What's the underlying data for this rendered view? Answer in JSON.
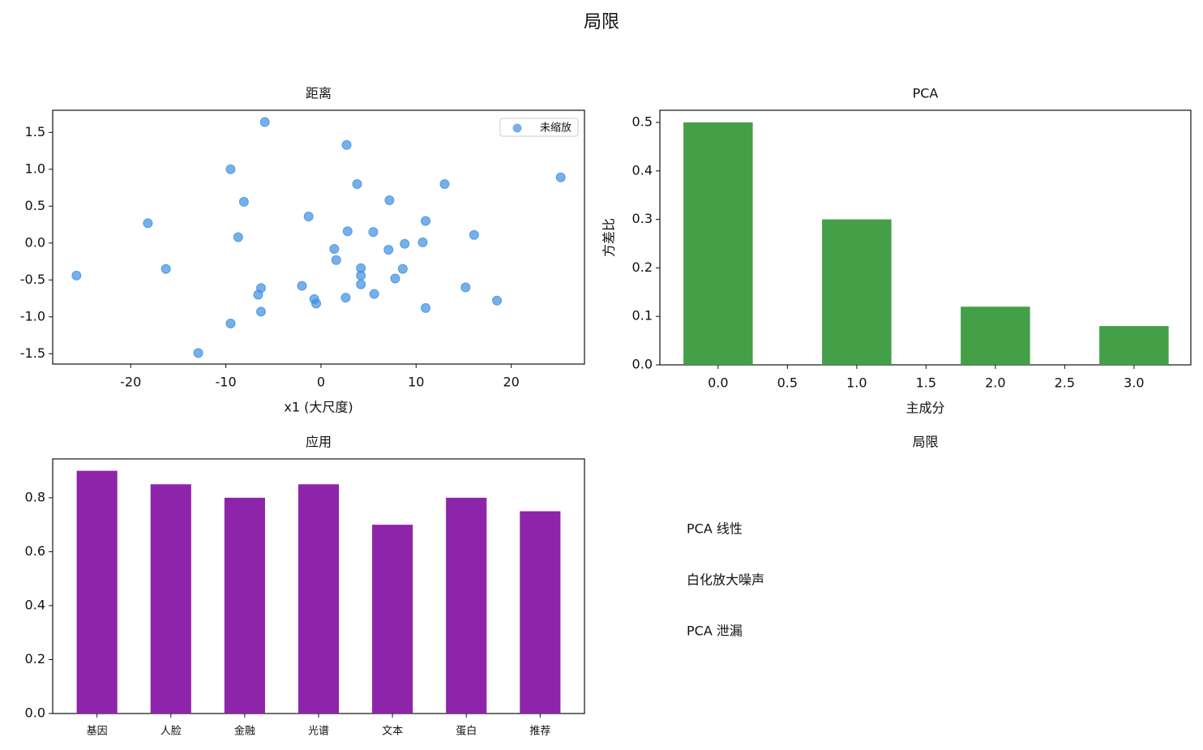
{
  "title": "局限",
  "chart_data": [
    {
      "type": "scatter",
      "title": "距离",
      "xlabel": "x1 (大尺度)",
      "series": [
        {
          "name": "未缩放",
          "color": "#3d8fe0",
          "x": [
            -5.9,
            2.7,
            -9.5,
            25.2,
            3.8,
            13.0,
            -8.1,
            7.2,
            -18.2,
            -1.3,
            11.0,
            2.8,
            5.5,
            -8.7,
            16.1,
            10.7,
            8.8,
            1.4,
            7.1,
            1.6,
            -16.3,
            4.2,
            8.6,
            -25.7,
            4.2,
            7.8,
            4.2,
            -2.0,
            -6.3,
            15.2,
            -6.6,
            5.6,
            2.6,
            -0.7,
            -0.5,
            18.5,
            11.0,
            -6.3,
            -9.5,
            -12.9
          ],
          "values": [
            1.64,
            1.33,
            1.0,
            0.89,
            0.8,
            0.8,
            0.56,
            0.58,
            0.27,
            0.36,
            0.3,
            0.16,
            0.15,
            0.08,
            0.11,
            0.01,
            -0.01,
            -0.08,
            -0.09,
            -0.23,
            -0.35,
            -0.34,
            -0.35,
            -0.44,
            -0.44,
            -0.48,
            -0.56,
            -0.58,
            -0.61,
            -0.6,
            -0.7,
            -0.69,
            -0.74,
            -0.76,
            -0.82,
            -0.78,
            -0.88,
            -0.93,
            -1.09,
            -1.49
          ]
        }
      ],
      "xlim": [
        -28.2,
        27.7
      ],
      "ylim": [
        -1.64,
        1.8
      ],
      "xticks": [
        -20,
        -10,
        0,
        10,
        20
      ],
      "yticks": [
        1.5,
        {
          "value": 1,
          "label": "1.0"
        },
        0.5,
        {
          "value": 0,
          "label": "0.0"
        },
        -0.5,
        {
          "value": -1,
          "label": "-1.0"
        },
        -1.5
      ],
      "legend": "upper right"
    },
    {
      "type": "bar",
      "title": "PCA",
      "xlabel": "主成分",
      "ylabel": "方差比",
      "x": [
        0,
        1,
        2,
        3
      ],
      "values": [
        0.5,
        0.3,
        0.12,
        0.08
      ],
      "color": "#43a047",
      "xlim": [
        -0.42,
        3.41
      ],
      "ylim": [
        0,
        0.525
      ],
      "xticks": [
        {
          "value": 0,
          "label": "0.0"
        },
        0.5,
        {
          "value": 1,
          "label": "1.0"
        },
        1.5,
        {
          "value": 2,
          "label": "2.0"
        },
        2.5,
        {
          "value": 3,
          "label": "3.0"
        }
      ],
      "yticks": [
        {
          "value": 0,
          "label": "0.0"
        },
        0.1,
        0.2,
        0.3,
        0.4,
        0.5
      ]
    },
    {
      "type": "bar",
      "title": "应用",
      "categories": [
        "基因",
        "人脸",
        "金融",
        "光谱",
        "文本",
        "蛋白",
        "推荐"
      ],
      "values": [
        0.9,
        0.85,
        0.8,
        0.85,
        0.7,
        0.8,
        0.75
      ],
      "color": "#8e24aa",
      "ylim": [
        0,
        0.944
      ],
      "yticks": [
        {
          "value": 0,
          "label": "0.0"
        },
        0.2,
        0.4,
        0.6,
        0.8
      ]
    },
    {
      "type": "text",
      "title": "局限",
      "lines": [
        "PCA 线性",
        "白化放大噪声",
        "PCA 泄漏"
      ]
    }
  ]
}
